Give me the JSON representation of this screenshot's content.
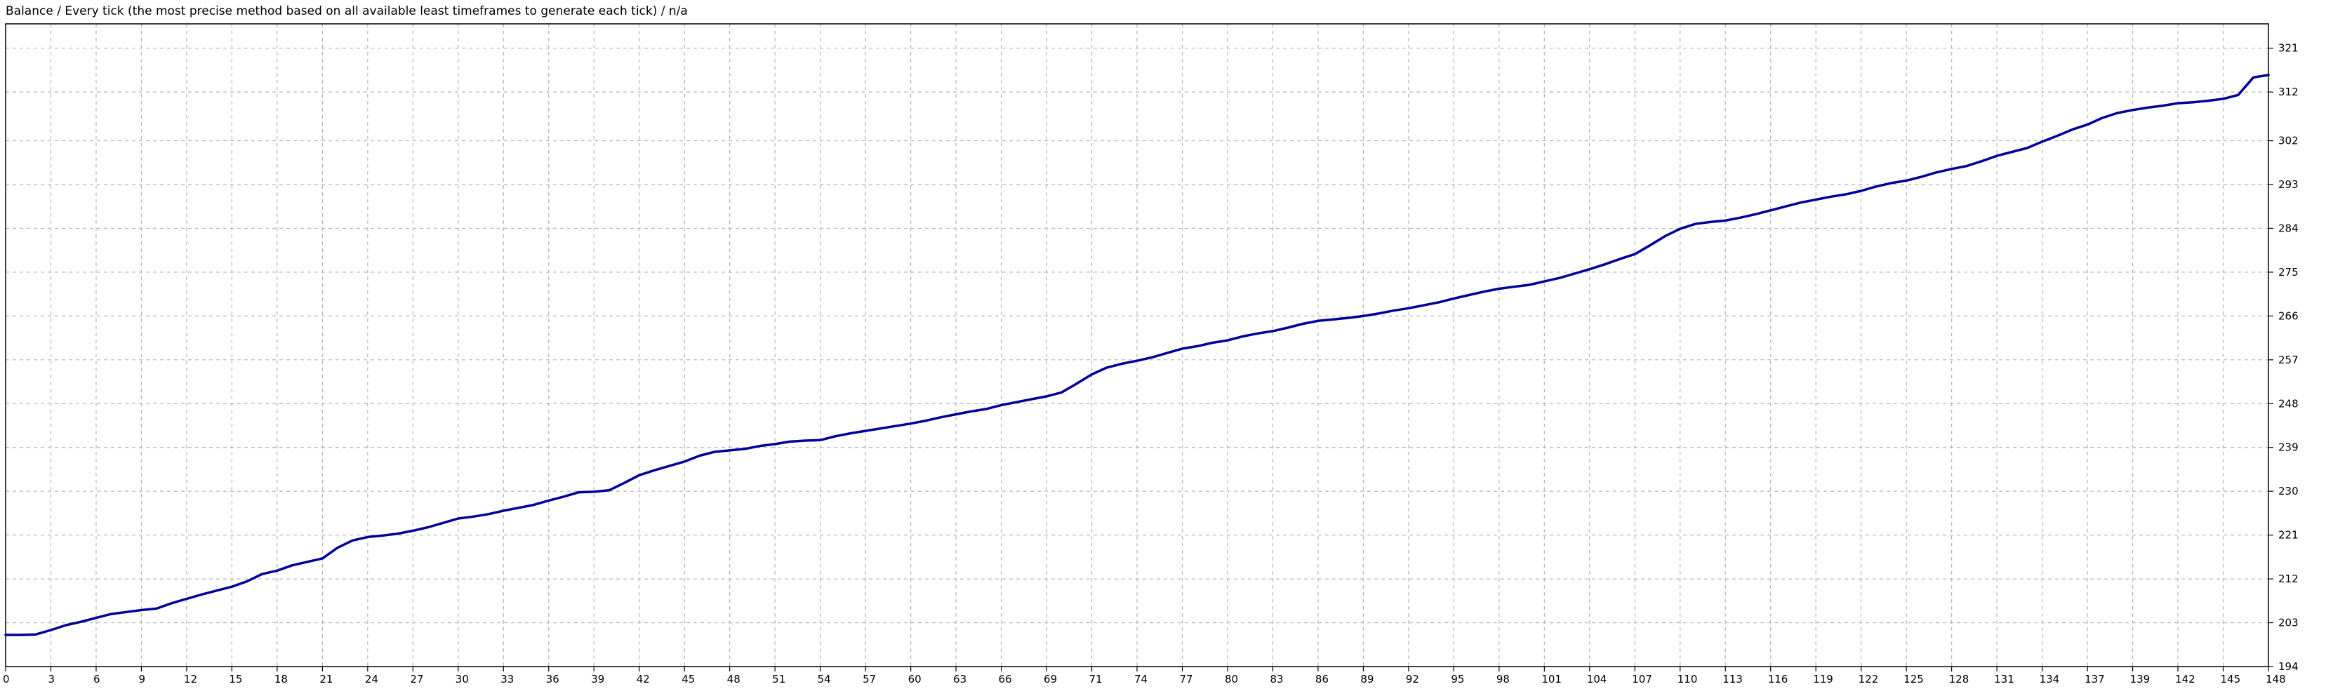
{
  "chart_data": {
    "type": "line",
    "title": "Balance / Every tick (the most precise method based on all available least timeframes to generate each tick) / n/a",
    "xlabel": "",
    "ylabel": "",
    "xlim": [
      0,
      150
    ],
    "ylim": [
      194,
      326
    ],
    "grid": true,
    "legend": "none",
    "x_ticks": [
      "0",
      "3",
      "6",
      "9",
      "12",
      "15",
      "18",
      "21",
      "24",
      "27",
      "30",
      "33",
      "36",
      "39",
      "42",
      "45",
      "48",
      "51",
      "54",
      "57",
      "60",
      "63",
      "66",
      "69",
      "71",
      "74",
      "77",
      "80",
      "83",
      "86",
      "89",
      "92",
      "95",
      "98",
      "101",
      "104",
      "107",
      "110",
      "113",
      "116",
      "119",
      "122",
      "125",
      "128",
      "131",
      "134",
      "137",
      "139",
      "142",
      "145",
      "148"
    ],
    "y_ticks": [
      "194",
      "203",
      "212",
      "221",
      "230",
      "239",
      "248",
      "257",
      "266",
      "275",
      "284",
      "293",
      "302",
      "312",
      "321"
    ],
    "colors": {
      "series": "#000099",
      "grid": "#b4b4b4",
      "axis": "#000000",
      "background": "#ffffff"
    },
    "series": [
      {
        "x": [
          0,
          1,
          2,
          3,
          4,
          5,
          6,
          7,
          8,
          9,
          10,
          11,
          12,
          13,
          14,
          15,
          16,
          17,
          18,
          19,
          20,
          21,
          22,
          23,
          24,
          25,
          26,
          27,
          28,
          29,
          30,
          31,
          32,
          33,
          34,
          35,
          36,
          37,
          38,
          39,
          40,
          41,
          42,
          43,
          44,
          45,
          46,
          47,
          48,
          49,
          50,
          51,
          52,
          53,
          54,
          55,
          56,
          57,
          58,
          59,
          60,
          61,
          62,
          63,
          64,
          65,
          66,
          67,
          68,
          69,
          70,
          71,
          72,
          73,
          74,
          75,
          76,
          77,
          78,
          79,
          80,
          81,
          82,
          83,
          84,
          85,
          86,
          87,
          88,
          89,
          90,
          91,
          92,
          93,
          94,
          95,
          96,
          97,
          98,
          99,
          100,
          101,
          102,
          103,
          104,
          105,
          106,
          107,
          108,
          109,
          110,
          111,
          112,
          113,
          114,
          115,
          116,
          117,
          118,
          119,
          120,
          121,
          122,
          123,
          124,
          125,
          126,
          127,
          128,
          129,
          130,
          131,
          132,
          133,
          134,
          135,
          136,
          137,
          138,
          139,
          140,
          141,
          142,
          143,
          144,
          145,
          146,
          147,
          148,
          149,
          150
        ],
        "y": [
          200.5,
          200.5,
          200.6,
          201.5,
          202.5,
          203.2,
          204,
          204.8,
          205.2,
          205.6,
          205.9,
          207,
          207.9,
          208.8,
          209.6,
          210.4,
          211.5,
          213,
          213.7,
          214.8,
          215.5,
          216.2,
          218.4,
          219.9,
          220.6,
          220.9,
          221.3,
          221.9,
          222.6,
          223.5,
          224.4,
          224.8,
          225.3,
          226,
          226.6,
          227.2,
          228.1,
          228.9,
          229.8,
          229.9,
          230.2,
          231.7,
          233.3,
          234.3,
          235.2,
          236.1,
          237.3,
          238.1,
          238.4,
          238.7,
          239.3,
          239.7,
          240.2,
          240.4,
          240.5,
          241.3,
          241.9,
          242.4,
          242.9,
          243.4,
          243.9,
          244.5,
          245.2,
          245.8,
          246.4,
          246.9,
          247.7,
          248.3,
          248.9,
          249.5,
          250.3,
          252.1,
          254,
          255.4,
          256.2,
          256.8,
          257.5,
          258.4,
          259.3,
          259.8,
          260.5,
          261,
          261.8,
          262.4,
          262.9,
          263.6,
          264.4,
          265,
          265.3,
          265.6,
          266,
          266.5,
          267.1,
          267.6,
          268.2,
          268.8,
          269.6,
          270.3,
          271,
          271.6,
          272,
          272.4,
          273.1,
          273.8,
          274.7,
          275.6,
          276.6,
          277.7,
          278.7,
          280.5,
          282.4,
          283.9,
          284.9,
          285.3,
          285.6,
          286.2,
          286.9,
          287.7,
          288.5,
          289.3,
          289.9,
          290.5,
          291,
          291.7,
          292.6,
          293.3,
          293.8,
          294.6,
          295.5,
          296.2,
          296.8,
          297.8,
          298.9,
          299.7,
          300.5,
          301.8,
          303,
          304.3,
          305.3,
          306.7,
          307.7,
          308.3,
          308.8,
          309.2,
          309.7,
          309.9,
          310.2,
          310.6,
          311.4,
          315,
          315.5
        ]
      }
    ]
  }
}
